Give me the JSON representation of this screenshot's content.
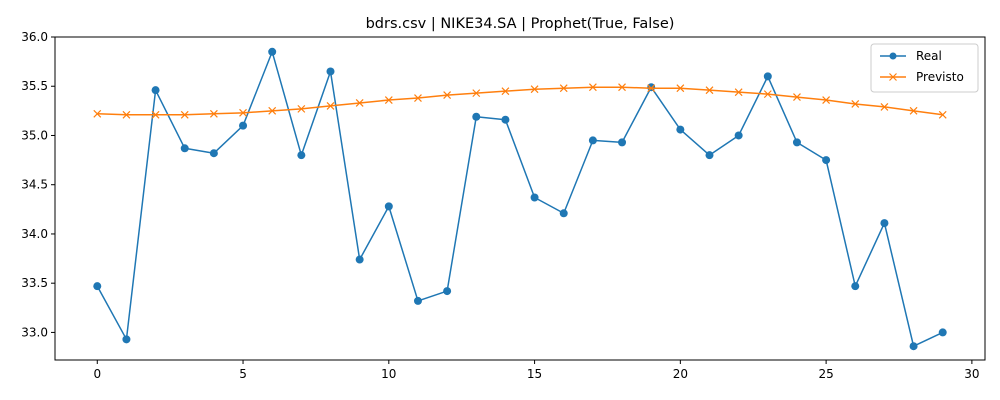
{
  "chart_data": {
    "type": "line",
    "title": "bdrs.csv | NIKE34.SA | Prophet(True, False)",
    "xlabel": "",
    "ylabel": "",
    "xlim": [
      -1.45,
      30.45
    ],
    "ylim": [
      32.72,
      36.0
    ],
    "xticks": [
      0,
      5,
      10,
      15,
      20,
      25,
      30
    ],
    "yticks": [
      33.0,
      33.5,
      34.0,
      34.5,
      35.0,
      35.5,
      36.0
    ],
    "grid": false,
    "legend_position": "top-right",
    "x": [
      0,
      1,
      2,
      3,
      4,
      5,
      6,
      7,
      8,
      9,
      10,
      11,
      12,
      13,
      14,
      15,
      16,
      17,
      18,
      19,
      20,
      21,
      22,
      23,
      24,
      25,
      26,
      27,
      28,
      29
    ],
    "series": [
      {
        "name": "Real",
        "color": "#1f77b4",
        "marker": "circle",
        "values": [
          33.47,
          32.93,
          35.46,
          34.87,
          34.82,
          35.1,
          35.85,
          34.8,
          35.65,
          33.74,
          34.28,
          33.32,
          33.42,
          35.19,
          35.16,
          34.37,
          34.21,
          34.95,
          34.93,
          35.49,
          35.06,
          34.8,
          35.0,
          35.6,
          34.93,
          34.75,
          33.47,
          34.11,
          32.86,
          33.0
        ]
      },
      {
        "name": "Previsto",
        "color": "#ff7f0e",
        "marker": "x",
        "values": [
          35.22,
          35.21,
          35.21,
          35.21,
          35.22,
          35.23,
          35.25,
          35.27,
          35.3,
          35.33,
          35.36,
          35.38,
          35.41,
          35.43,
          35.45,
          35.47,
          35.48,
          35.49,
          35.49,
          35.48,
          35.48,
          35.46,
          35.44,
          35.42,
          35.39,
          35.36,
          35.32,
          35.29,
          35.25,
          35.21
        ]
      }
    ]
  }
}
